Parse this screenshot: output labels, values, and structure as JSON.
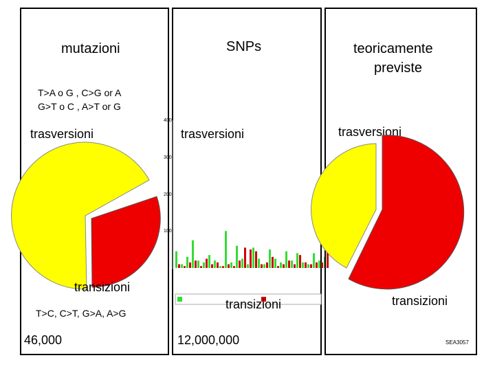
{
  "panels": {
    "mutations": {
      "title": "mutazioni",
      "transversion_rule_1": "T>A o G , C>G or A",
      "transversion_rule_2": "G>T o C , A>T or G",
      "transversion_label": "trasversioni",
      "transition_label": "transizioni",
      "transition_rule": "T>C, C>T, G>A, A>G",
      "count": "46,000"
    },
    "snps": {
      "title": "SNPs",
      "transversion_label": "trasversioni",
      "transition_label": "transizioni",
      "count": "12,000,000"
    },
    "theoretical": {
      "title_line1": "teoricamente",
      "title_line2": "previste",
      "transversion_label": "trasversioni",
      "transition_label": "transizioni",
      "slide_code": "SEA3057"
    }
  },
  "colors": {
    "yellow": "#ffff00",
    "red": "#ee0000",
    "green": "#33dd33",
    "darkred": "#cc0000"
  },
  "chart_data": {
    "type": "bar",
    "ylim": [
      0,
      400
    ],
    "y_ticks": [
      "100",
      "200",
      "300",
      "400"
    ],
    "series": [
      {
        "name": "Green series",
        "values": [
          45,
          10,
          30,
          75,
          20,
          15,
          35,
          20,
          5,
          100,
          15,
          60,
          25,
          10,
          55,
          25,
          10,
          50,
          25,
          15,
          45,
          20,
          40,
          15,
          10,
          40,
          20,
          30
        ]
      },
      {
        "name": "Red series",
        "values": [
          10,
          5,
          15,
          20,
          5,
          25,
          10,
          15,
          5,
          10,
          5,
          20,
          55,
          50,
          45,
          10,
          15,
          30,
          5,
          10,
          20,
          10,
          35,
          15,
          10,
          15,
          15,
          95
        ]
      }
    ]
  }
}
